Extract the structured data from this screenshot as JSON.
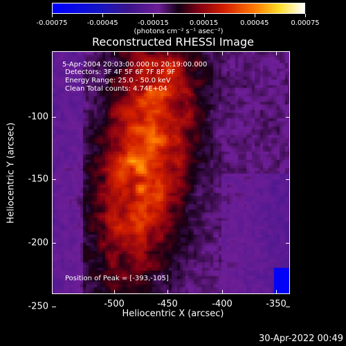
{
  "colorbar": {
    "units": "(photons cm⁻² s⁻¹ asec⁻²)",
    "tick_labels": [
      "-0.00075",
      "-0.00045",
      "-0.00015",
      "0.00015",
      "0.00045",
      "0.00075"
    ],
    "colormap": "blue-purple-red-yellow-white"
  },
  "title": "Reconstructed RHESSI Image",
  "annotations": {
    "time": "5-Apr-2004 20:03:00.000 to 20:19:00.000",
    "detectors": "Detectors: 3F 4F 5F 6F 7F 8F 9F",
    "energy": "Energy Range: 25.0 - 50.0 keV",
    "clean": "Clean     Total counts: 4.74E+04",
    "peak": "Position of Peak = [-393,-105]"
  },
  "axes": {
    "xlabel": "Heliocentric X (arcsec)",
    "ylabel": "Heliocentric Y (arcsec)",
    "x_ticks": [
      "-500",
      "-450",
      "-400",
      "-350"
    ],
    "y_ticks": [
      "-100",
      "-150",
      "-200",
      "-250"
    ]
  },
  "footer": {
    "timestamp": "30-Apr-2022 00:49"
  }
}
